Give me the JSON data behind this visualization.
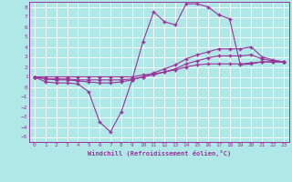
{
  "xlabel": "Windchill (Refroidissement éolien,°C)",
  "bg_color": "#b0e8e8",
  "grid_color": "#ffffff",
  "line_color": "#993399",
  "xlim": [
    -0.5,
    23.5
  ],
  "ylim": [
    -5.5,
    8.5
  ],
  "xticks": [
    0,
    1,
    2,
    3,
    4,
    5,
    6,
    7,
    8,
    9,
    10,
    11,
    12,
    13,
    14,
    15,
    16,
    17,
    18,
    19,
    20,
    21,
    22,
    23
  ],
  "yticks": [
    -5,
    -4,
    -3,
    -2,
    -1,
    0,
    1,
    2,
    3,
    4,
    5,
    6,
    7,
    8
  ],
  "line1_x": [
    0,
    1,
    2,
    3,
    4,
    5,
    6,
    7,
    8,
    9,
    10,
    11,
    12,
    13,
    14,
    15,
    16,
    17,
    18,
    19,
    20,
    21,
    22,
    23
  ],
  "line1_y": [
    1.0,
    1.0,
    1.0,
    1.0,
    1.0,
    1.0,
    1.0,
    1.0,
    1.0,
    1.0,
    1.2,
    1.3,
    1.5,
    1.7,
    2.0,
    2.2,
    2.3,
    2.3,
    2.3,
    2.3,
    2.4,
    2.5,
    2.5,
    2.5
  ],
  "line2_x": [
    0,
    1,
    2,
    3,
    4,
    5,
    6,
    7,
    8,
    9,
    10,
    11,
    12,
    13,
    14,
    15,
    16,
    17,
    18,
    19,
    20,
    21,
    22,
    23
  ],
  "line2_y": [
    1.0,
    0.8,
    0.8,
    0.8,
    0.7,
    0.7,
    0.7,
    0.7,
    0.7,
    0.8,
    1.0,
    1.2,
    1.5,
    1.8,
    2.3,
    2.6,
    2.9,
    3.1,
    3.1,
    3.1,
    3.2,
    2.8,
    2.6,
    2.5
  ],
  "line3_x": [
    0,
    1,
    2,
    3,
    4,
    5,
    6,
    7,
    8,
    9,
    10,
    11,
    12,
    13,
    14,
    15,
    16,
    17,
    18,
    19,
    20,
    21,
    22,
    23
  ],
  "line3_y": [
    1.0,
    0.8,
    0.7,
    0.7,
    0.6,
    0.5,
    0.4,
    0.4,
    0.5,
    0.7,
    1.0,
    1.4,
    1.8,
    2.2,
    2.8,
    3.2,
    3.5,
    3.8,
    3.8,
    3.8,
    4.0,
    3.0,
    2.7,
    2.5
  ],
  "line4_x": [
    0,
    1,
    2,
    3,
    4,
    5,
    6,
    7,
    8,
    9,
    10,
    11,
    12,
    13,
    14,
    15,
    16,
    17,
    18,
    19,
    20,
    21,
    22,
    23
  ],
  "line4_y": [
    1.0,
    0.5,
    0.4,
    0.4,
    0.3,
    -0.5,
    -3.5,
    -4.5,
    -2.5,
    0.7,
    4.5,
    7.5,
    6.5,
    6.2,
    8.3,
    8.3,
    8.0,
    7.2,
    6.8,
    2.2,
    2.3,
    2.5,
    2.5,
    2.5
  ]
}
